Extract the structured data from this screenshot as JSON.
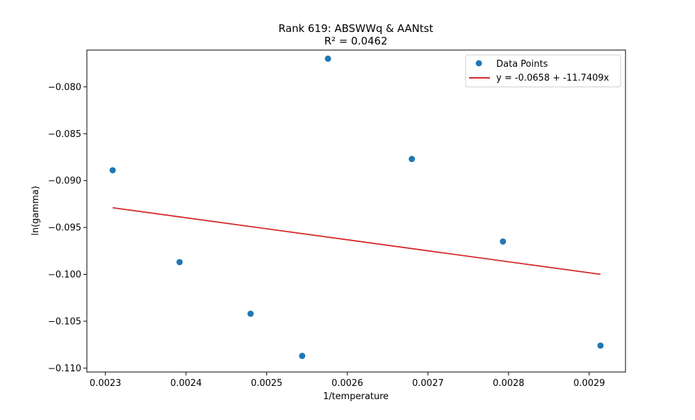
{
  "chart_data": {
    "type": "scatter",
    "title": "Rank 619: ABSWWq & AANtst",
    "subtitle": "R² = 0.0462",
    "xlabel": "1/temperature",
    "ylabel": "ln(gamma)",
    "xlim": [
      0.002277,
      0.002945
    ],
    "ylim": [
      -0.11042,
      -0.07608
    ],
    "x_ticks": [
      {
        "value": 0.0023,
        "label": "0.0023"
      },
      {
        "value": 0.0024,
        "label": "0.0024"
      },
      {
        "value": 0.0025,
        "label": "0.0025"
      },
      {
        "value": 0.0026,
        "label": "0.0026"
      },
      {
        "value": 0.0027,
        "label": "0.0027"
      },
      {
        "value": 0.0028,
        "label": "0.0028"
      },
      {
        "value": 0.0029,
        "label": "0.0029"
      }
    ],
    "y_ticks": [
      {
        "value": -0.08,
        "label": "−0.080"
      },
      {
        "value": -0.085,
        "label": "−0.085"
      },
      {
        "value": -0.09,
        "label": "−0.090"
      },
      {
        "value": -0.095,
        "label": "−0.095"
      },
      {
        "value": -0.1,
        "label": "−0.100"
      },
      {
        "value": -0.105,
        "label": "−0.105"
      },
      {
        "value": -0.11,
        "label": "−0.110"
      }
    ],
    "grid": false,
    "legend_position": "top-right",
    "series": [
      {
        "name": "Data Points",
        "kind": "scatter",
        "color": "#1f77b4",
        "x": [
          0.002309,
          0.002392,
          0.00248,
          0.002544,
          0.002576,
          0.00268,
          0.002793,
          0.002914
        ],
        "y": [
          -0.0889,
          -0.0987,
          -0.1042,
          -0.1087,
          -0.077,
          -0.0877,
          -0.0965,
          -0.1076
        ]
      },
      {
        "name": "y = -0.0658 + -11.7409x",
        "kind": "line",
        "color": "#d62728",
        "x": [
          0.002309,
          0.002914
        ],
        "y": [
          -0.0929,
          -0.1
        ]
      }
    ]
  }
}
